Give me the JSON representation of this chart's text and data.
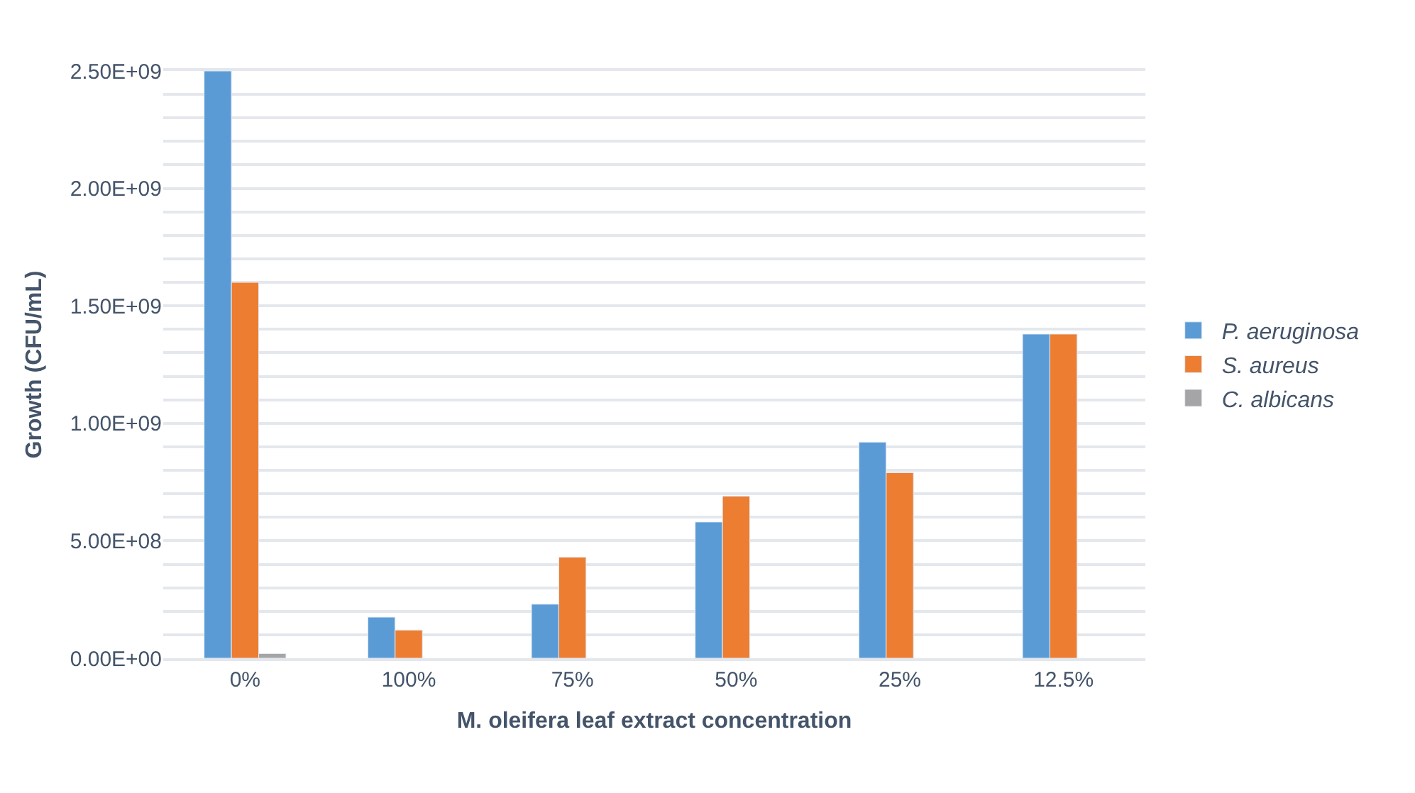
{
  "chart_data": {
    "type": "bar",
    "xlabel": "M. oleifera leaf extract concentration",
    "ylabel": "Growth (CFU/mL)",
    "categories": [
      "0%",
      "100%",
      "75%",
      "50%",
      "25%",
      "12.5%"
    ],
    "series": [
      {
        "name": "P. aeruginosa",
        "color": "#5b9bd5",
        "values": [
          2500000000,
          175000000,
          230000000,
          580000000,
          920000000,
          1380000000
        ]
      },
      {
        "name": "S. aureus",
        "color": "#ed7d31",
        "values": [
          1600000000,
          120000000,
          430000000,
          690000000,
          790000000,
          1380000000
        ]
      },
      {
        "name": "C. albicans",
        "color": "#a5a5a5",
        "values": [
          20000000,
          null,
          null,
          null,
          null,
          null
        ]
      }
    ],
    "ylim": [
      0,
      2500000000
    ],
    "yticks": [
      {
        "value": 0,
        "label": "0.00E+00"
      },
      {
        "value": 100000000,
        "label": null
      },
      {
        "value": 200000000,
        "label": null
      },
      {
        "value": 300000000,
        "label": null
      },
      {
        "value": 400000000,
        "label": null
      },
      {
        "value": 500000000,
        "label": "5.00E+08"
      },
      {
        "value": 600000000,
        "label": null
      },
      {
        "value": 700000000,
        "label": null
      },
      {
        "value": 800000000,
        "label": null
      },
      {
        "value": 900000000,
        "label": null
      },
      {
        "value": 1000000000,
        "label": "1.00E+09"
      },
      {
        "value": 1100000000,
        "label": null
      },
      {
        "value": 1200000000,
        "label": null
      },
      {
        "value": 1300000000,
        "label": null
      },
      {
        "value": 1400000000,
        "label": null
      },
      {
        "value": 1500000000,
        "label": "1.50E+09"
      },
      {
        "value": 1600000000,
        "label": null
      },
      {
        "value": 1700000000,
        "label": null
      },
      {
        "value": 1800000000,
        "label": null
      },
      {
        "value": 1900000000,
        "label": null
      },
      {
        "value": 2000000000,
        "label": "2.00E+09"
      },
      {
        "value": 2100000000,
        "label": null
      },
      {
        "value": 2200000000,
        "label": null
      },
      {
        "value": 2300000000,
        "label": null
      },
      {
        "value": 2400000000,
        "label": null
      },
      {
        "value": 2500000000,
        "label": "2.50E+09"
      }
    ],
    "grid": "y",
    "legend": "right"
  }
}
